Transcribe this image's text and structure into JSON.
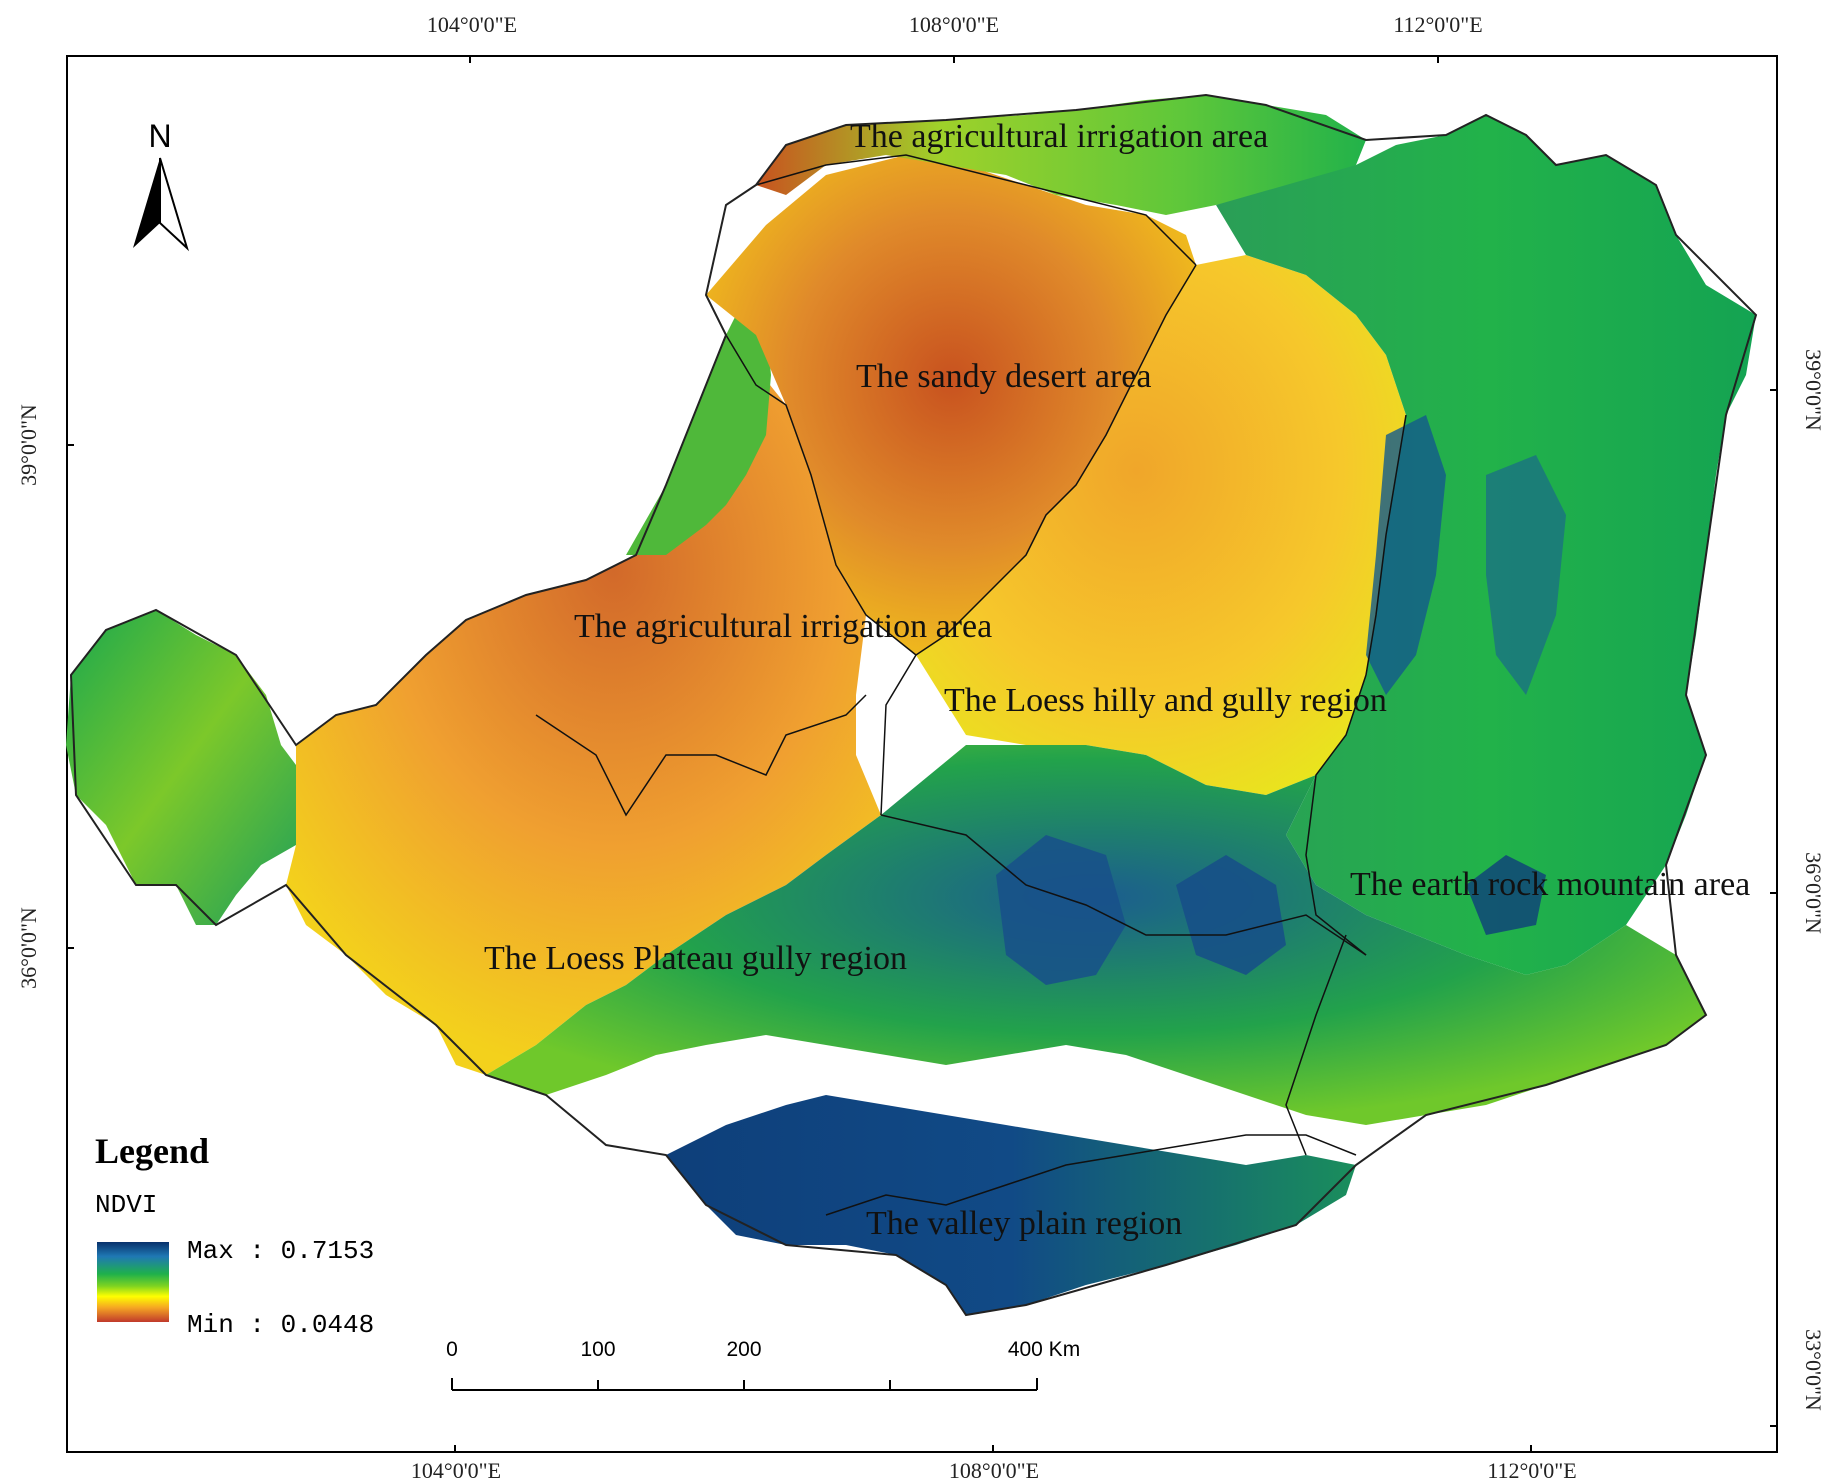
{
  "map": {
    "coords": {
      "top": [
        "104°0'0\"E",
        "108°0'0\"E",
        "112°0'0\"E"
      ],
      "bottom": [
        "104°0'0\"E",
        "108°0'0\"E",
        "112°0'0\"E"
      ],
      "left": [
        "39°0'0\"N",
        "36°0'0\"N"
      ],
      "right": [
        "39°0'0\"N",
        "36°0'0\"N",
        "33°0'0\"N"
      ]
    },
    "regions": [
      "The agricultural irrigation area",
      "The sandy desert area",
      "The agricultural irrigation area",
      "The Loess hilly and gully region",
      "The earth rock mountain area",
      "The Loess Plateau gully region",
      "The valley plain region"
    ],
    "north_label": "N",
    "legend": {
      "title": "Legend",
      "field": "NDVI",
      "max_label": "Max : 0.7153",
      "min_label": "Min : 0.0448",
      "max_value": 0.7153,
      "min_value": 0.0448,
      "colors": [
        "#08306b",
        "#1fb14b",
        "#ffff00",
        "#f5a623",
        "#c0392b"
      ]
    },
    "scale": {
      "labels": [
        "0",
        "100",
        "200",
        "400 Km"
      ]
    }
  }
}
